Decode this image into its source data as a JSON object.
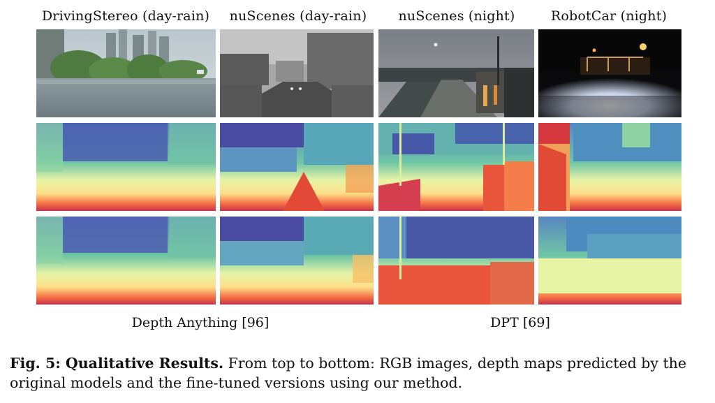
{
  "figure": {
    "columns": [
      {
        "title": "DrivingStereo (day-rain)",
        "scene": "day-rain-city"
      },
      {
        "title": "nuScenes (day-rain)",
        "scene": "day-rain-street"
      },
      {
        "title": "nuScenes (night)",
        "scene": "night-road"
      },
      {
        "title": "RobotCar (night)",
        "scene": "night-lit-dock"
      }
    ],
    "rows": [
      "RGB images",
      "depth maps predicted by the original models",
      "the fine-tuned versions using our method"
    ],
    "group_labels": {
      "left": "Depth Anything [96]",
      "right": "DPT [69]"
    },
    "caption": {
      "lead": "Fig. 5: Qualitative Results.",
      "text": "From top to bottom: RGB images, depth maps predicted by the original models and the fine-tuned versions using our method."
    }
  }
}
